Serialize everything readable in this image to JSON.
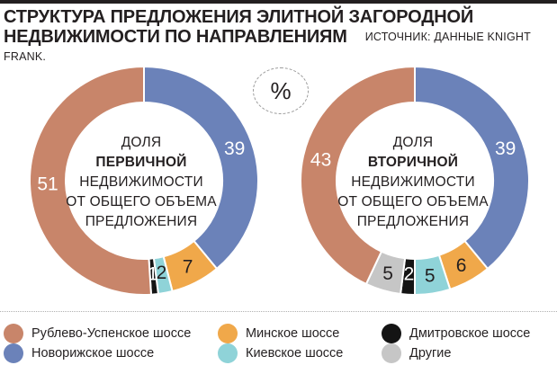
{
  "header": {
    "title": "Структура предложения элитной загородной недвижимости по направлениям",
    "source": "Источник: данные Knight Frank."
  },
  "badge": "%",
  "colors": {
    "rublevo": "#c8856a",
    "novorizhskoe": "#6b82b9",
    "minskoe": "#f0a84a",
    "kievskoe": "#8fd3d8",
    "dmitrovskoe": "#141414",
    "other": "#c6c6c6"
  },
  "chart_data": [
    {
      "type": "donut",
      "center": [
        "Доля",
        "первичной",
        "недвижимости",
        "от общего объема",
        "предложения"
      ],
      "center_bold_line": 1,
      "slices": [
        {
          "series": "novorizhskoe",
          "value": 39
        },
        {
          "series": "minskoe",
          "value": 7
        },
        {
          "series": "kievskoe",
          "value": 2
        },
        {
          "series": "dmitrovskoe",
          "value": 1
        },
        {
          "series": "rublevo",
          "value": 51
        }
      ]
    },
    {
      "type": "donut",
      "center": [
        "Доля",
        "вторичной",
        "недвижимости",
        "от общего объема",
        "предложения"
      ],
      "center_bold_line": 1,
      "slices": [
        {
          "series": "novorizhskoe",
          "value": 39
        },
        {
          "series": "minskoe",
          "value": 6
        },
        {
          "series": "kievskoe",
          "value": 5
        },
        {
          "series": "dmitrovskoe",
          "value": 2
        },
        {
          "series": "other",
          "value": 5
        },
        {
          "series": "rublevo",
          "value": 43
        }
      ]
    }
  ],
  "legend": [
    {
      "series": "rublevo",
      "label": "Рублево-Успенское шоссе"
    },
    {
      "series": "novorizhskoe",
      "label": "Новорижское шоссе"
    },
    {
      "series": "minskoe",
      "label": "Минское шоссе"
    },
    {
      "series": "kievskoe",
      "label": "Киевское шоссе"
    },
    {
      "series": "dmitrovskoe",
      "label": "Дмитровское шоссе"
    },
    {
      "series": "other",
      "label": "Другие"
    }
  ]
}
